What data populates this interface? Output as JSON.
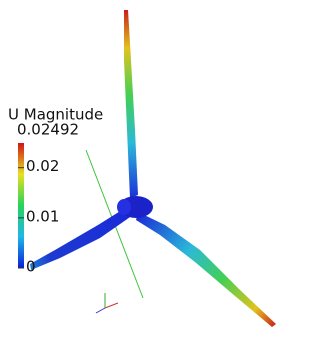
{
  "colorbar": {
    "title": "U Magnitude",
    "range": [
      0,
      0.02492
    ],
    "ticks": [
      0,
      0.01,
      0.02
    ]
  }
}
